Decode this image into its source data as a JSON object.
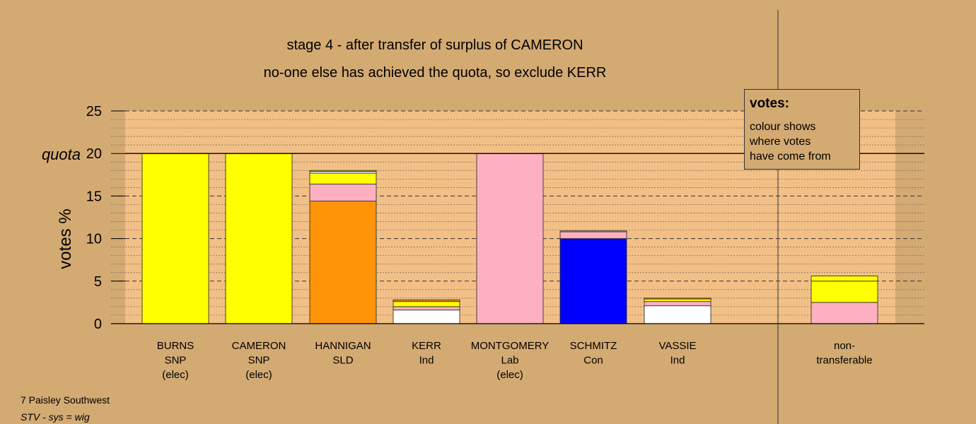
{
  "titles": {
    "line1": "stage 4 - after transfer of surplus of CAMERON",
    "line2": "no-one else has achieved the quota, so exclude KERR"
  },
  "footer": {
    "line1": "7 Paisley Southwest",
    "line2": "STV - sys = wig"
  },
  "legend": {
    "title": "votes:",
    "lines": [
      "colour shows",
      "where votes",
      "have come from"
    ]
  },
  "quota_label": "quota",
  "colors": {
    "background": "#d4aa73",
    "plot_area": "#f2c086",
    "SNP": "#ffff00",
    "SLD": "#ff9408",
    "Lab": "#fdb0c0",
    "Con": "#0000ff",
    "Ind": "#ffffff"
  },
  "chart_data": {
    "type": "bar",
    "stacked": true,
    "ylabel": "votes %",
    "ylim": [
      0,
      25
    ],
    "yticks": [
      0,
      5,
      10,
      15,
      20,
      25
    ],
    "quota": 20,
    "grid": true,
    "categories": [
      {
        "label": [
          "BURNS",
          "SNP",
          "(elec)"
        ],
        "segments": [
          {
            "party": "SNP",
            "value": 20
          }
        ]
      },
      {
        "label": [
          "CAMERON",
          "SNP",
          "(elec)"
        ],
        "segments": [
          {
            "party": "SNP",
            "value": 20
          }
        ]
      },
      {
        "label": [
          "HANNIGAN",
          "SLD"
        ],
        "segments": [
          {
            "party": "SLD",
            "value": 14.4
          },
          {
            "party": "Lab",
            "value": 2.0
          },
          {
            "party": "SNP",
            "value": 1.3
          },
          {
            "party": "Ind",
            "value": 0.2
          },
          {
            "party": "SNP",
            "value": 0.1
          }
        ]
      },
      {
        "label": [
          "KERR",
          "Ind"
        ],
        "segments": [
          {
            "party": "Ind",
            "value": 1.6
          },
          {
            "party": "Lab",
            "value": 0.4
          },
          {
            "party": "SNP",
            "value": 0.6
          },
          {
            "party": "SLD",
            "value": 0.2
          }
        ]
      },
      {
        "label": [
          "MONTGOMERY",
          "Lab",
          "(elec)"
        ],
        "segments": [
          {
            "party": "Lab",
            "value": 20
          }
        ]
      },
      {
        "label": [
          "SCHMITZ",
          "Con"
        ],
        "segments": [
          {
            "party": "Con",
            "value": 10.0
          },
          {
            "party": "Lab",
            "value": 0.8
          },
          {
            "party": "SNP",
            "value": 0.1
          }
        ]
      },
      {
        "label": [
          "VASSIE",
          "Ind"
        ],
        "segments": [
          {
            "party": "Ind",
            "value": 2.1
          },
          {
            "party": "Lab",
            "value": 0.5
          },
          {
            "party": "SNP",
            "value": 0.3
          },
          {
            "party": "SLD",
            "value": 0.1
          }
        ]
      },
      {
        "label": [
          "non-",
          "transferable"
        ],
        "segments": [
          {
            "party": "Lab",
            "value": 2.5
          },
          {
            "party": "SNP",
            "value": 2.5
          },
          {
            "party": "SNP",
            "value": 0.6
          }
        ]
      }
    ]
  }
}
